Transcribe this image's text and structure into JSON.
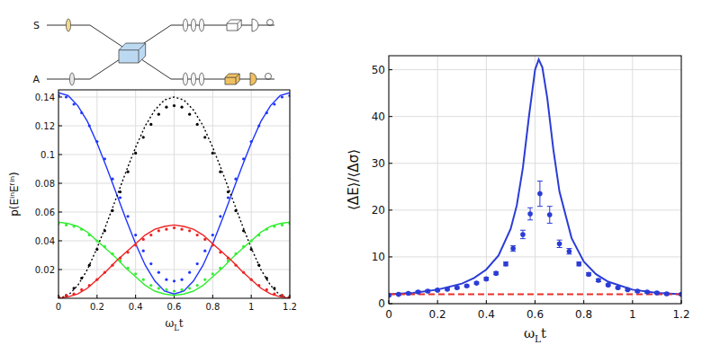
{
  "diagram": {
    "labels": [
      "S",
      "A"
    ]
  },
  "chart_data": [
    {
      "type": "line",
      "x_label": "ωLt",
      "y_label": "p(EⁱⁿEᶠⁱⁿ)",
      "xlim": [
        0,
        1.2
      ],
      "ylim": [
        0,
        0.145
      ],
      "xticks": [
        0,
        0.2,
        0.4,
        0.6,
        0.8,
        1,
        1.2
      ],
      "yticks": [
        0.02,
        0.04,
        0.06,
        0.08,
        0.1,
        0.12,
        0.14
      ],
      "grid": true,
      "series": [
        {
          "type": "line",
          "color": "#1f35ff",
          "line_style": "solid",
          "x": [
            0,
            0.05,
            0.1,
            0.15,
            0.2,
            0.25,
            0.3,
            0.35,
            0.4,
            0.45,
            0.5,
            0.55,
            0.6,
            0.65,
            0.7,
            0.75,
            0.8,
            0.85,
            0.9,
            0.95,
            1,
            1.05,
            1.1,
            1.15,
            1.2
          ],
          "values": [
            0.143,
            0.141,
            0.134,
            0.123,
            0.108,
            0.091,
            0.073,
            0.055,
            0.038,
            0.023,
            0.012,
            0.005,
            0.003,
            0.005,
            0.012,
            0.023,
            0.038,
            0.055,
            0.073,
            0.091,
            0.108,
            0.123,
            0.134,
            0.141,
            0.143
          ]
        },
        {
          "type": "line",
          "color": "#000000",
          "line_style": "dotted",
          "x": [
            0,
            0.05,
            0.1,
            0.15,
            0.2,
            0.25,
            0.3,
            0.35,
            0.4,
            0.45,
            0.5,
            0.55,
            0.6,
            0.65,
            0.7,
            0.75,
            0.8,
            0.85,
            0.9,
            0.95,
            1,
            1.05,
            1.1,
            1.15,
            1.2
          ],
          "values": [
            0,
            0.002,
            0.009,
            0.02,
            0.035,
            0.052,
            0.07,
            0.088,
            0.105,
            0.12,
            0.131,
            0.138,
            0.14,
            0.138,
            0.131,
            0.12,
            0.105,
            0.088,
            0.07,
            0.052,
            0.035,
            0.02,
            0.009,
            0.002,
            0
          ]
        },
        {
          "type": "line",
          "color": "#33ee33",
          "line_style": "solid",
          "x": [
            0,
            0.05,
            0.1,
            0.15,
            0.2,
            0.25,
            0.3,
            0.35,
            0.4,
            0.45,
            0.5,
            0.55,
            0.6,
            0.65,
            0.7,
            0.75,
            0.8,
            0.85,
            0.9,
            0.95,
            1,
            1.05,
            1.1,
            1.15,
            1.2
          ],
          "values": [
            0.053,
            0.052,
            0.05,
            0.046,
            0.04,
            0.034,
            0.028,
            0.021,
            0.015,
            0.009,
            0.005,
            0.003,
            0.002,
            0.003,
            0.005,
            0.009,
            0.015,
            0.021,
            0.028,
            0.034,
            0.04,
            0.046,
            0.05,
            0.052,
            0.053
          ]
        },
        {
          "type": "line",
          "color": "#ee2222",
          "line_style": "solid",
          "x": [
            0,
            0.05,
            0.1,
            0.15,
            0.2,
            0.25,
            0.3,
            0.35,
            0.4,
            0.45,
            0.5,
            0.55,
            0.6,
            0.65,
            0.7,
            0.75,
            0.8,
            0.85,
            0.9,
            0.95,
            1,
            1.05,
            1.1,
            1.15,
            1.2
          ],
          "values": [
            0,
            0.001,
            0.003,
            0.007,
            0.013,
            0.019,
            0.026,
            0.032,
            0.038,
            0.044,
            0.048,
            0.05,
            0.051,
            0.05,
            0.048,
            0.044,
            0.038,
            0.032,
            0.026,
            0.019,
            0.013,
            0.007,
            0.003,
            0.001,
            0
          ]
        },
        {
          "type": "scatter",
          "color": "#1f35ff",
          "marker": "dot",
          "x": [
            0,
            0.04,
            0.08,
            0.12,
            0.16,
            0.2,
            0.24,
            0.28,
            0.32,
            0.36,
            0.4,
            0.44,
            0.48,
            0.52,
            0.56,
            0.6,
            0.64,
            0.68,
            0.72,
            0.76,
            0.8,
            0.84,
            0.88,
            0.92,
            0.96,
            1,
            1.04,
            1.08,
            1.12,
            1.16,
            1.2
          ],
          "values": [
            0.141,
            0.14,
            0.135,
            0.129,
            0.12,
            0.109,
            0.097,
            0.083,
            0.07,
            0.057,
            0.044,
            0.033,
            0.024,
            0.018,
            0.013,
            0.012,
            0.013,
            0.018,
            0.024,
            0.033,
            0.044,
            0.057,
            0.07,
            0.083,
            0.097,
            0.109,
            0.12,
            0.129,
            0.135,
            0.14,
            0.141
          ]
        },
        {
          "type": "scatter",
          "color": "#000000",
          "marker": "dot",
          "x": [
            0,
            0.04,
            0.08,
            0.12,
            0.16,
            0.2,
            0.24,
            0.28,
            0.32,
            0.36,
            0.4,
            0.44,
            0.48,
            0.52,
            0.56,
            0.6,
            0.64,
            0.68,
            0.72,
            0.76,
            0.8,
            0.84,
            0.88,
            0.92,
            0.96,
            1,
            1.04,
            1.08,
            1.12,
            1.16,
            1.2
          ],
          "values": [
            0.001,
            0.002,
            0.007,
            0.014,
            0.023,
            0.034,
            0.047,
            0.061,
            0.074,
            0.088,
            0.101,
            0.112,
            0.121,
            0.128,
            0.133,
            0.134,
            0.133,
            0.128,
            0.121,
            0.112,
            0.101,
            0.088,
            0.074,
            0.061,
            0.047,
            0.034,
            0.023,
            0.014,
            0.007,
            0.002,
            0.001
          ]
        },
        {
          "type": "scatter",
          "color": "#33ee33",
          "marker": "dot",
          "x": [
            0,
            0.04,
            0.08,
            0.12,
            0.16,
            0.2,
            0.24,
            0.28,
            0.32,
            0.36,
            0.4,
            0.44,
            0.48,
            0.52,
            0.56,
            0.6,
            0.64,
            0.68,
            0.72,
            0.76,
            0.8,
            0.84,
            0.88,
            0.92,
            0.96,
            1,
            1.04,
            1.08,
            1.12,
            1.16,
            1.2
          ],
          "values": [
            0.052,
            0.051,
            0.05,
            0.048,
            0.044,
            0.04,
            0.036,
            0.031,
            0.026,
            0.021,
            0.017,
            0.013,
            0.009,
            0.007,
            0.006,
            0.005,
            0.006,
            0.007,
            0.009,
            0.013,
            0.017,
            0.021,
            0.026,
            0.031,
            0.036,
            0.04,
            0.044,
            0.048,
            0.05,
            0.051,
            0.052
          ]
        },
        {
          "type": "scatter",
          "color": "#ee2222",
          "marker": "dot",
          "x": [
            0,
            0.04,
            0.08,
            0.12,
            0.16,
            0.2,
            0.24,
            0.28,
            0.32,
            0.36,
            0.4,
            0.44,
            0.48,
            0.52,
            0.56,
            0.6,
            0.64,
            0.68,
            0.72,
            0.76,
            0.8,
            0.84,
            0.88,
            0.92,
            0.96,
            1,
            1.04,
            1.08,
            1.12,
            1.16,
            1.2
          ],
          "values": [
            0.001,
            0.002,
            0.003,
            0.006,
            0.009,
            0.013,
            0.018,
            0.023,
            0.028,
            0.032,
            0.037,
            0.041,
            0.044,
            0.047,
            0.048,
            0.049,
            0.048,
            0.047,
            0.044,
            0.041,
            0.037,
            0.032,
            0.028,
            0.023,
            0.018,
            0.013,
            0.009,
            0.006,
            0.003,
            0.002,
            0.001
          ]
        }
      ]
    },
    {
      "type": "line",
      "x_label": "ωLt",
      "y_label": "⟨ΔE⟩/⟨Δσ⟩",
      "xlim": [
        0,
        1.2
      ],
      "ylim": [
        0,
        53
      ],
      "xticks": [
        0,
        0.2,
        0.4,
        0.6,
        0.8,
        1,
        1.2
      ],
      "yticks": [
        0,
        10,
        20,
        30,
        40,
        50
      ],
      "grid": true,
      "series": [
        {
          "type": "line",
          "color": "#2b3cd6",
          "line_style": "solid",
          "x": [
            0,
            0.1,
            0.2,
            0.3,
            0.35,
            0.4,
            0.45,
            0.5,
            0.525,
            0.55,
            0.575,
            0.6,
            0.615,
            0.63,
            0.65,
            0.675,
            0.7,
            0.75,
            0.8,
            0.85,
            0.9,
            1,
            1.1,
            1.2
          ],
          "values": [
            2,
            2.3,
            3,
            4.3,
            5.5,
            7.3,
            10.3,
            16,
            21,
            29,
            40,
            50,
            52.2,
            50.5,
            44,
            33,
            24,
            14,
            9,
            6.3,
            4.7,
            3,
            2.3,
            2
          ]
        },
        {
          "type": "line",
          "color": "#e8302a",
          "line_style": "dashed",
          "x": [
            0,
            1.2
          ],
          "values": [
            2,
            2
          ]
        },
        {
          "type": "scatter",
          "color": "#2b3cd6",
          "marker": "circle",
          "x": [
            0,
            0.04,
            0.08,
            0.12,
            0.16,
            0.2,
            0.24,
            0.28,
            0.32,
            0.36,
            0.4,
            0.44,
            0.48,
            0.51,
            0.55,
            0.58,
            0.62,
            0.66,
            0.7,
            0.74,
            0.78,
            0.82,
            0.86,
            0.9,
            0.94,
            0.98,
            1.02,
            1.06,
            1.1,
            1.14,
            1.2
          ],
          "values": [
            1.8,
            2,
            2.2,
            2.5,
            2.7,
            2.9,
            3.1,
            3.4,
            3.8,
            4.4,
            5.3,
            6.5,
            8.5,
            11.8,
            14.8,
            19.2,
            23.5,
            19,
            12.8,
            11.2,
            8.5,
            6.3,
            5,
            4,
            3.4,
            3,
            2.7,
            2.5,
            2.3,
            2.1,
            2
          ],
          "errors": [
            0.2,
            0.2,
            0.2,
            0.2,
            0.2,
            0.2,
            0.2,
            0.2,
            0.2,
            0.2,
            0.3,
            0.3,
            0.4,
            0.6,
            0.9,
            1.3,
            2.7,
            1.8,
            0.8,
            0.6,
            0.4,
            0.3,
            0.3,
            0.2,
            0.2,
            0.2,
            0.2,
            0.2,
            0.2,
            0.2,
            0.2
          ]
        }
      ]
    }
  ]
}
